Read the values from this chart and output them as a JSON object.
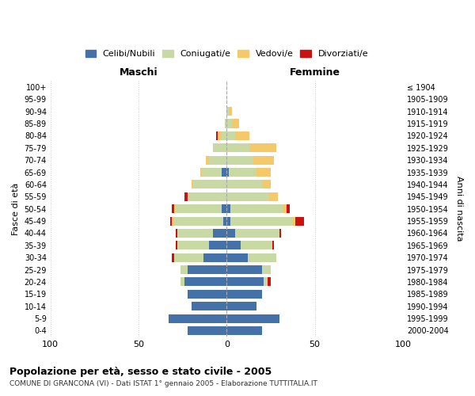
{
  "age_groups": [
    "0-4",
    "5-9",
    "10-14",
    "15-19",
    "20-24",
    "25-29",
    "30-34",
    "35-39",
    "40-44",
    "45-49",
    "50-54",
    "55-59",
    "60-64",
    "65-69",
    "70-74",
    "75-79",
    "80-84",
    "85-89",
    "90-94",
    "95-99",
    "100+"
  ],
  "birth_years": [
    "2000-2004",
    "1995-1999",
    "1990-1994",
    "1985-1989",
    "1980-1984",
    "1975-1979",
    "1970-1974",
    "1965-1969",
    "1960-1964",
    "1955-1959",
    "1950-1954",
    "1945-1949",
    "1940-1944",
    "1935-1939",
    "1930-1934",
    "1925-1929",
    "1920-1924",
    "1915-1919",
    "1910-1914",
    "1905-1909",
    "≤ 1904"
  ],
  "colors": {
    "celibi": "#4472a8",
    "coniugati": "#c8d9a4",
    "vedovi": "#f5c96a",
    "divorziati": "#cc1111"
  },
  "males": {
    "celibi": [
      22,
      33,
      20,
      22,
      24,
      22,
      13,
      10,
      8,
      2,
      3,
      0,
      0,
      3,
      0,
      0,
      0,
      0,
      0,
      0,
      0
    ],
    "coniugati": [
      0,
      0,
      0,
      0,
      2,
      4,
      17,
      18,
      20,
      28,
      26,
      22,
      19,
      11,
      10,
      8,
      3,
      1,
      0,
      0,
      0
    ],
    "vedovi": [
      0,
      0,
      0,
      0,
      0,
      0,
      0,
      0,
      0,
      1,
      1,
      0,
      1,
      1,
      2,
      0,
      2,
      0,
      0,
      0,
      0
    ],
    "divorziati": [
      0,
      0,
      0,
      0,
      0,
      0,
      1,
      1,
      1,
      1,
      1,
      2,
      0,
      0,
      0,
      0,
      1,
      0,
      0,
      0,
      0
    ]
  },
  "females": {
    "nubili": [
      20,
      30,
      17,
      20,
      21,
      20,
      12,
      8,
      5,
      2,
      2,
      0,
      0,
      1,
      0,
      0,
      0,
      0,
      0,
      0,
      0
    ],
    "coniugate": [
      0,
      0,
      0,
      0,
      2,
      5,
      16,
      18,
      25,
      35,
      30,
      24,
      20,
      16,
      15,
      13,
      5,
      3,
      1,
      0,
      0
    ],
    "vedove": [
      0,
      0,
      0,
      0,
      0,
      0,
      0,
      0,
      0,
      2,
      2,
      5,
      5,
      8,
      12,
      15,
      8,
      4,
      2,
      0,
      0
    ],
    "divorziate": [
      0,
      0,
      0,
      0,
      2,
      0,
      0,
      1,
      1,
      5,
      2,
      0,
      0,
      0,
      0,
      0,
      0,
      0,
      0,
      0,
      0
    ]
  },
  "title": "Popolazione per età, sesso e stato civile - 2005",
  "subtitle": "COMUNE DI GRANCONA (VI) - Dati ISTAT 1° gennaio 2005 - Elaborazione TUTTITALIA.IT",
  "xlabel_left": "Maschi",
  "xlabel_right": "Femmine",
  "ylabel_left": "Fasce di età",
  "ylabel_right": "Anni di nascita",
  "xlim": 100,
  "background_color": "#ffffff",
  "grid_color": "#cccccc"
}
